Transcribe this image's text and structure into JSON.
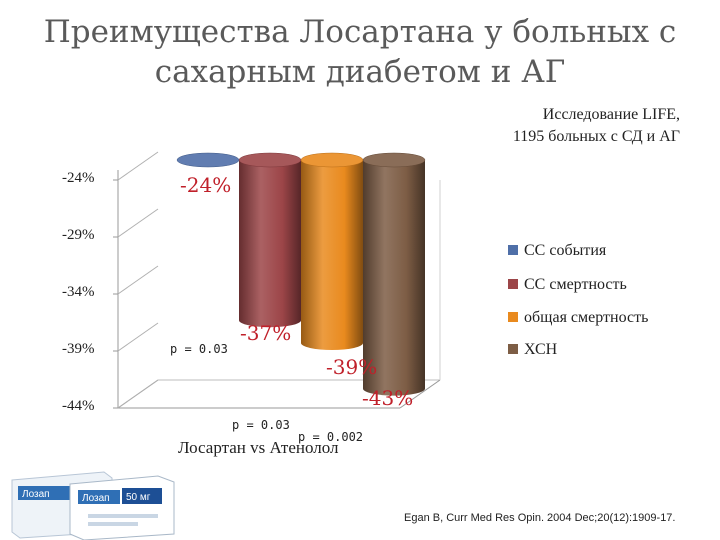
{
  "title": "Преимущества Лосартана у больных с сахарным диабетом и АГ",
  "study_line1": "Исследование LIFE,",
  "study_line2": "1195 больных с СД и АГ",
  "citation": "Egan B, Curr Med Res Opin. 2004 Dec;20(12):1909-17.",
  "p_values": [
    "p = 0.03",
    "p = 0.03",
    "p = 0.002"
  ],
  "pack_labels": [
    "Лозап",
    "Лозап",
    "50 мг"
  ],
  "chart_data": {
    "type": "bar",
    "title": "",
    "xlabel": "Лосартан vs Атенолол",
    "ylabel": "",
    "categories": [
      "Лосартан vs Атенолол"
    ],
    "yticks": [
      -24,
      -29,
      -34,
      -39,
      -44
    ],
    "ytick_labels": [
      "-24%",
      "-29%",
      "-34%",
      "-39%",
      "-44%"
    ],
    "ylim": [
      -44,
      -24
    ],
    "legend_position": "right",
    "series": [
      {
        "name": "СС события",
        "values": [
          -24
        ],
        "label": "-24%",
        "color": "#4f6fa8"
      },
      {
        "name": "СС смертность",
        "values": [
          -37
        ],
        "label": "-37%",
        "color": "#9c4548"
      },
      {
        "name": "общая смертность",
        "values": [
          -39
        ],
        "label": "-39%",
        "color": "#e98a1e"
      },
      {
        "name": "ХСН",
        "values": [
          -43
        ],
        "label": "-43%",
        "color": "#7d5d45"
      }
    ],
    "label_color": "#c0202a"
  }
}
